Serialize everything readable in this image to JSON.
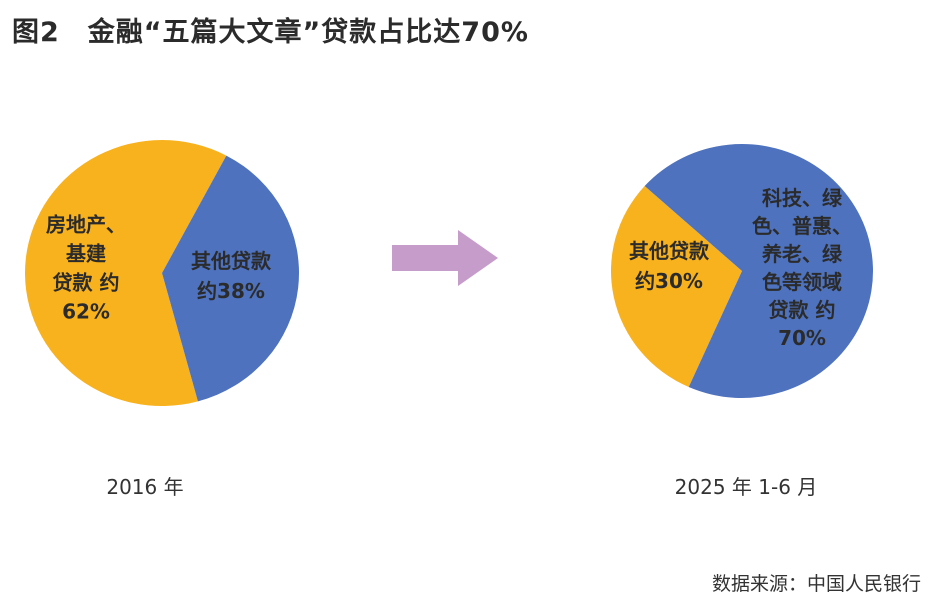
{
  "figure": {
    "number": "图2",
    "title": "金融“五篇大文章”贷款占比达70%"
  },
  "source": "数据来源：中国人民银行",
  "colors": {
    "yellow": "#F8B21E",
    "blue": "#4E72BE",
    "arrow": "#C69CCB",
    "label_text": "#2B2B2B"
  },
  "chart_data": [
    {
      "type": "pie",
      "period": "2016 年",
      "slices": [
        {
          "label_lines": [
            "房地产、",
            "基建",
            "贷款 约",
            "62%"
          ],
          "value": 62,
          "color": "#F8B21E"
        },
        {
          "label_lines": [
            "其他贷款",
            "约38%"
          ],
          "value": 38,
          "color": "#4E72BE"
        }
      ]
    },
    {
      "type": "pie",
      "period": "2025 年 1-6 月",
      "slices": [
        {
          "label_lines": [
            "其他贷款",
            "约30%"
          ],
          "value": 30,
          "color": "#F8B21E"
        },
        {
          "label_lines": [
            "科技、绿",
            "色、普惠、",
            "养老、绿",
            "色等领域",
            "贷款 约",
            "70%"
          ],
          "value": 70,
          "color": "#4E72BE"
        }
      ]
    }
  ],
  "arrow": {
    "icon": "right-arrow-icon"
  }
}
